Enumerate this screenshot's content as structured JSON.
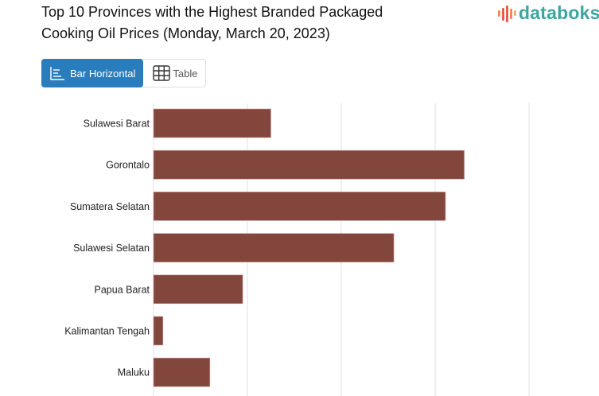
{
  "header": {
    "title_line1": "Top 10 Provinces with the Highest Branded Packaged",
    "title_line2": "Cooking Oil Prices (Monday, March 20, 2023)",
    "logo_text": "databoks"
  },
  "view_toggle": {
    "options": [
      {
        "label": "Bar Horizontal",
        "icon": "bar-horizontal-icon",
        "active": true
      },
      {
        "label": "Table",
        "icon": "table-grid-icon",
        "active": false
      }
    ]
  },
  "colors": {
    "bar": "#83463C",
    "accent": "#2a7dbd",
    "logo": "#3aa6a0",
    "grid": "#e2e2e2"
  },
  "chart_data": {
    "type": "bar",
    "orientation": "horizontal",
    "title": "Top 10 Provinces with the Highest Branded Packaged Cooking Oil Prices (Monday, March 20, 2023)",
    "xlabel": "",
    "ylabel": "",
    "value_units": "relative gridline units (no tick labels visible)",
    "xlim": [
      0,
      4
    ],
    "grid_step": 1,
    "grid": true,
    "categories": [
      "Sulawesi Barat",
      "Gorontalo",
      "Sumatera Selatan",
      "Sulawesi Selatan",
      "Papua Barat",
      "Kalimantan Tengah",
      "Maluku"
    ],
    "values": [
      1.25,
      3.31,
      3.11,
      2.56,
      0.95,
      0.1,
      0.6
    ]
  }
}
